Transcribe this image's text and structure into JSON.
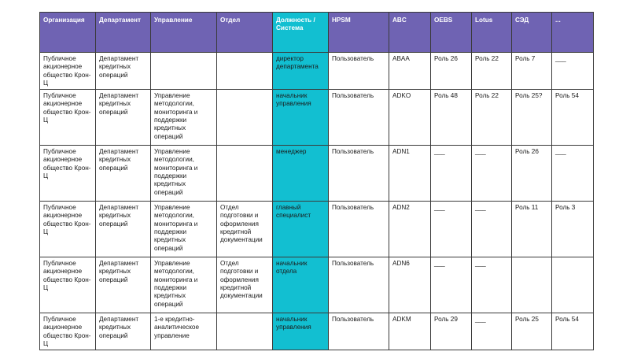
{
  "colors": {
    "header_bg": "#6f63b3",
    "role_column_bg": "#12bfd1",
    "system_gradient_top": "#ee5aa3",
    "system_gradient_bottom": "#f9b2b8"
  },
  "table": {
    "headers": [
      "Организация",
      "Департамент",
      "Управление",
      "Отдел",
      "Должность / Система",
      "HPSM",
      "ABC",
      "OEBS",
      "Lotus",
      "СЭД",
      "..."
    ],
    "rows": [
      [
        "Публичное акционерное общество Крон-Ц",
        "Департамент кредитных операций",
        "",
        "",
        "директор департамента",
        "Пользователь",
        "ABAA",
        "Роль 26",
        "Роль 22",
        "Роль 7",
        "___"
      ],
      [
        "Публичное акционерное общество Крон-Ц",
        "Департамент кредитных операций",
        "Управление методологии, мониторинга и поддержки кредитных операций",
        "",
        "начальник управления",
        "Пользователь",
        "ADKO",
        "Роль 48",
        "Роль 22",
        "Роль 25?",
        "Роль 54"
      ],
      [
        "Публичное акционерное общество Крон-Ц",
        "Департамент кредитных операций",
        "Управление методологии, мониторинга и поддержки кредитных операций",
        "",
        "менеджер",
        "Пользователь",
        "ADN1",
        "___",
        "___",
        "Роль 26",
        "___"
      ],
      [
        "Публичное акционерное общество Крон-Ц",
        "Департамент кредитных операций",
        "Управление методологии, мониторинга и поддержки кредитных операций",
        "Отдел подготовки и оформления кредитной документации",
        "главный специалист",
        "Пользователь",
        "ADN2",
        "___",
        "___",
        "Роль 11",
        "Роль 3"
      ],
      [
        "Публичное акционерное общество Крон-Ц",
        "Департамент кредитных операций",
        "Управление методологии, мониторинга и поддержки кредитных операций",
        "Отдел подготовки и оформления кредитной документации",
        "начальник отдела",
        "Пользователь",
        "ADN6",
        "___",
        "___",
        "",
        ""
      ],
      [
        "Публичное акционерное общество Крон-Ц",
        "Департамент кредитных операций",
        "1-е кредитно-аналитическое управление",
        "",
        "начальник управления",
        "Пользователь",
        "ADKM",
        "Роль 29",
        "___",
        "Роль 25",
        "Роль 54"
      ]
    ]
  }
}
